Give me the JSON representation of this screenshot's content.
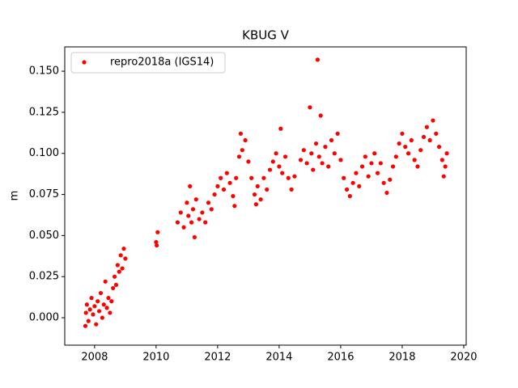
{
  "chart_data": {
    "type": "scatter",
    "title": "KBUG V",
    "ylabel": "m",
    "legend": "upper left",
    "xlim": [
      2007.03,
      2020.08
    ],
    "xticks": [
      2008,
      2010,
      2012,
      2014,
      2016,
      2018,
      2020
    ],
    "ylim": [
      -0.0167,
      0.1648
    ],
    "yticks": [
      {
        "value": 0,
        "label": "0.000"
      },
      {
        "value": 0.025,
        "label": "0.025"
      },
      {
        "value": 0.05,
        "label": "0.050"
      },
      {
        "value": 0.075,
        "label": "0.075"
      },
      {
        "value": 0.1,
        "label": "0.100"
      },
      {
        "value": 0.125,
        "label": "0.125"
      },
      {
        "value": 0.15,
        "label": "0.150"
      }
    ],
    "series": [
      {
        "name": "repro2018a (IGS14)",
        "color": "#ff0000",
        "x": [
          2007.7,
          2007.72,
          2007.75,
          2007.8,
          2007.85,
          2007.9,
          2007.95,
          2008.0,
          2008.05,
          2008.1,
          2008.15,
          2008.2,
          2008.25,
          2008.3,
          2008.35,
          2008.4,
          2008.45,
          2008.5,
          2008.55,
          2008.6,
          2008.65,
          2008.7,
          2008.75,
          2008.8,
          2008.85,
          2008.9,
          2008.95,
          2009.0,
          2010.0,
          2010.02,
          2010.05,
          2010.7,
          2010.8,
          2010.9,
          2011.0,
          2011.05,
          2011.1,
          2011.15,
          2011.2,
          2011.25,
          2011.3,
          2011.4,
          2011.5,
          2011.6,
          2011.7,
          2011.8,
          2011.9,
          2012.0,
          2012.1,
          2012.2,
          2012.3,
          2012.4,
          2012.5,
          2012.55,
          2012.6,
          2012.7,
          2012.75,
          2012.8,
          2012.9,
          2013.0,
          2013.1,
          2013.2,
          2013.25,
          2013.3,
          2013.4,
          2013.5,
          2013.6,
          2013.7,
          2013.8,
          2013.9,
          2014.0,
          2014.05,
          2014.1,
          2014.2,
          2014.3,
          2014.4,
          2014.5,
          2014.7,
          2014.8,
          2014.9,
          2015.0,
          2015.05,
          2015.1,
          2015.2,
          2015.25,
          2015.3,
          2015.35,
          2015.4,
          2015.5,
          2015.6,
          2015.7,
          2015.8,
          2015.9,
          2016.0,
          2016.1,
          2016.2,
          2016.3,
          2016.4,
          2016.5,
          2016.6,
          2016.7,
          2016.8,
          2016.9,
          2017.0,
          2017.1,
          2017.2,
          2017.3,
          2017.4,
          2017.5,
          2017.6,
          2017.7,
          2017.8,
          2017.9,
          2018.0,
          2018.1,
          2018.2,
          2018.3,
          2018.4,
          2018.5,
          2018.6,
          2018.7,
          2018.8,
          2018.9,
          2019.0,
          2019.1,
          2019.2,
          2019.3,
          2019.35,
          2019.4,
          2019.45
        ],
        "values": [
          -0.005,
          0.003,
          0.008,
          -0.002,
          0.005,
          0.012,
          0.002,
          0.007,
          -0.004,
          0.01,
          0.004,
          0.015,
          0.0,
          0.008,
          0.022,
          0.006,
          0.012,
          0.003,
          0.01,
          0.018,
          0.025,
          0.02,
          0.032,
          0.028,
          0.038,
          0.03,
          0.042,
          0.036,
          0.046,
          0.044,
          0.052,
          0.058,
          0.064,
          0.055,
          0.07,
          0.062,
          0.08,
          0.058,
          0.066,
          0.049,
          0.072,
          0.06,
          0.064,
          0.058,
          0.07,
          0.066,
          0.075,
          0.08,
          0.085,
          0.078,
          0.088,
          0.082,
          0.074,
          0.068,
          0.085,
          0.098,
          0.112,
          0.102,
          0.108,
          0.095,
          0.085,
          0.075,
          0.069,
          0.08,
          0.072,
          0.085,
          0.078,
          0.09,
          0.095,
          0.1,
          0.092,
          0.115,
          0.088,
          0.098,
          0.085,
          0.078,
          0.086,
          0.096,
          0.102,
          0.094,
          0.128,
          0.1,
          0.09,
          0.106,
          0.157,
          0.098,
          0.123,
          0.094,
          0.104,
          0.092,
          0.108,
          0.1,
          0.112,
          0.096,
          0.085,
          0.078,
          0.074,
          0.082,
          0.088,
          0.08,
          0.092,
          0.098,
          0.086,
          0.094,
          0.1,
          0.088,
          0.094,
          0.082,
          0.076,
          0.084,
          0.092,
          0.098,
          0.106,
          0.112,
          0.104,
          0.1,
          0.108,
          0.096,
          0.092,
          0.102,
          0.11,
          0.116,
          0.108,
          0.12,
          0.112,
          0.104,
          0.096,
          0.086,
          0.092,
          0.1
        ]
      }
    ]
  }
}
